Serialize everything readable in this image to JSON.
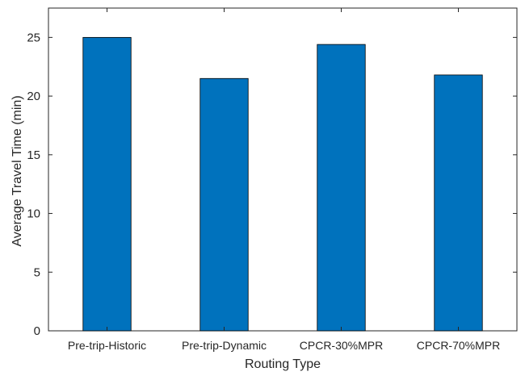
{
  "chart_data": {
    "type": "bar",
    "title": "",
    "xlabel": "Routing Type",
    "ylabel": "Average Travel Time (min)",
    "categories": [
      "Pre-trip-Historic",
      "Pre-trip-Dynamic",
      "CPCR-30%MPR",
      "CPCR-70%MPR"
    ],
    "values": [
      25.0,
      21.5,
      24.4,
      21.8
    ],
    "ylim": [
      0,
      27.5
    ],
    "yticks": [
      0,
      5,
      10,
      15,
      20,
      25
    ],
    "grid": false,
    "legend": "none",
    "bar_color": "#0072BD"
  }
}
